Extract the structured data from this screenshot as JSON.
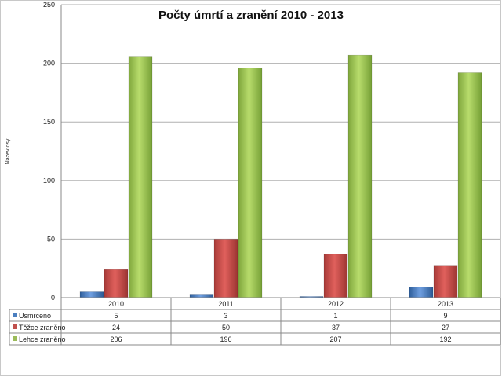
{
  "chart_data": {
    "type": "bar",
    "title": "Počty úmrtí a zranění 2010 - 2013",
    "ylabel": "Název osy",
    "xlabel": "",
    "categories": [
      "2010",
      "2011",
      "2012",
      "2013"
    ],
    "ylim": [
      0,
      250
    ],
    "yticks": [
      0,
      50,
      100,
      150,
      200,
      250
    ],
    "grid": true,
    "legend": "data-table",
    "series": [
      {
        "name": "Usmrceno",
        "values": [
          5,
          3,
          1,
          9
        ],
        "color": "#4a7ebf"
      },
      {
        "name": "Těžce zraněno",
        "values": [
          24,
          50,
          37,
          27
        ],
        "color": "#c0504d"
      },
      {
        "name": "Lehce zraněno",
        "values": [
          206,
          196,
          207,
          192
        ],
        "color": "#9bbb59"
      }
    ]
  }
}
